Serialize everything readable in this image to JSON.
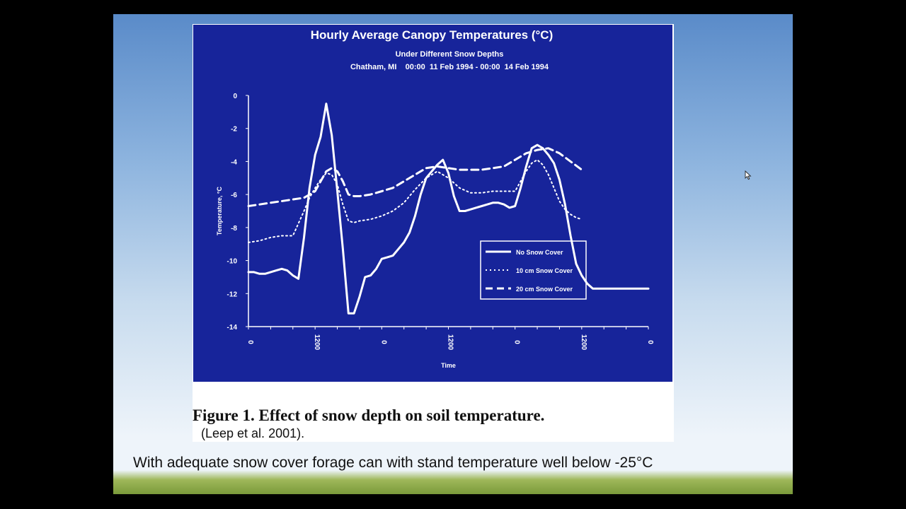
{
  "slide": {
    "caption": "Figure 1.  Effect of snow depth on soil temperature.",
    "citation": "(Leep et al. 2001).",
    "body_text": "With adequate snow cover forage can with stand temperature well below -25°C"
  },
  "chart_data": {
    "type": "line",
    "title": "Hourly Average Canopy Temperatures (°C)",
    "subtitle": "Under Different Snow Depths",
    "subtitle2": "Chatham, MI    00:00  11 Feb 1994 - 00:00  14 Feb 1994",
    "xlabel": "Time",
    "ylabel": "Temperature, °C",
    "ylim": [
      -14,
      0
    ],
    "xlim": [
      0,
      72
    ],
    "xtick_positions": [
      0,
      12,
      24,
      36,
      48,
      60,
      72
    ],
    "xtick_labels": [
      "0",
      "1200",
      "0",
      "1200",
      "0",
      "1200",
      "0"
    ],
    "yticks": [
      0,
      -2,
      -4,
      -6,
      -8,
      -10,
      -12,
      -14
    ],
    "legend_position": "center-right",
    "colors": {
      "background": "#17249a",
      "lines": "#ffffff"
    },
    "series": [
      {
        "name": "No Snow Cover",
        "style": "solid",
        "x": [
          0,
          1,
          2,
          3,
          4,
          5,
          6,
          7,
          8,
          9,
          10,
          11,
          12,
          13,
          14,
          15,
          16,
          17,
          18,
          19,
          20,
          21,
          22,
          23,
          24,
          25,
          26,
          27,
          28,
          29,
          30,
          31,
          32,
          33,
          34,
          35,
          36,
          37,
          38,
          39,
          40,
          41,
          42,
          43,
          44,
          45,
          46,
          47,
          48,
          49,
          50,
          51,
          52,
          53,
          54,
          55,
          56,
          57,
          58,
          59,
          60,
          61,
          62,
          63,
          64,
          65,
          66,
          67,
          68,
          69,
          70,
          71,
          72
        ],
        "values": [
          -10.7,
          -10.7,
          -10.8,
          -10.8,
          -10.7,
          -10.6,
          -10.5,
          -10.6,
          -10.9,
          -11.1,
          -8.6,
          -5.6,
          -3.6,
          -2.5,
          -0.5,
          -2.4,
          -5.8,
          -9.3,
          -13.2,
          -13.2,
          -12.2,
          -11.0,
          -10.9,
          -10.5,
          -9.9,
          -9.8,
          -9.7,
          -9.3,
          -8.9,
          -8.3,
          -7.3,
          -6.0,
          -5.0,
          -4.6,
          -4.2,
          -3.9,
          -4.7,
          -6.1,
          -7.0,
          -7.0,
          -6.9,
          -6.8,
          -6.7,
          -6.6,
          -6.5,
          -6.5,
          -6.6,
          -6.8,
          -6.7,
          -5.6,
          -4.3,
          -3.2,
          -3.0,
          -3.2,
          -3.6,
          -4.1,
          -5.1,
          -6.6,
          -8.5,
          -10.2,
          -10.9,
          -11.4,
          -11.7,
          -11.7,
          -11.7,
          -11.7,
          -11.7,
          -11.7,
          -11.7,
          -11.7,
          -11.7,
          -11.7,
          -11.7
        ]
      },
      {
        "name": "10 cm Snow Cover",
        "style": "dotted",
        "x": [
          0,
          2,
          4,
          6,
          8,
          10,
          11,
          12,
          13,
          14,
          15,
          16,
          17,
          18,
          19,
          20,
          22,
          24,
          26,
          28,
          30,
          32,
          34,
          36,
          38,
          40,
          42,
          44,
          46,
          48,
          49,
          50,
          51,
          52,
          53,
          54,
          55,
          56,
          57,
          58,
          59,
          60
        ],
        "values": [
          -8.9,
          -8.8,
          -8.6,
          -8.5,
          -8.5,
          -7.0,
          -6.2,
          -5.6,
          -5.1,
          -4.7,
          -4.8,
          -5.4,
          -6.6,
          -7.6,
          -7.7,
          -7.6,
          -7.5,
          -7.3,
          -7.0,
          -6.5,
          -5.7,
          -5.0,
          -4.6,
          -5.0,
          -5.6,
          -5.9,
          -5.9,
          -5.8,
          -5.8,
          -5.8,
          -5.2,
          -4.6,
          -4.1,
          -3.9,
          -4.2,
          -4.8,
          -5.6,
          -6.4,
          -6.9,
          -7.2,
          -7.4,
          -7.5
        ]
      },
      {
        "name": "20 cm Snow Cover",
        "style": "dashed",
        "x": [
          0,
          2,
          4,
          6,
          8,
          10,
          12,
          13,
          14,
          15,
          16,
          17,
          18,
          19,
          20,
          22,
          24,
          26,
          28,
          30,
          32,
          34,
          36,
          38,
          40,
          42,
          44,
          46,
          48,
          50,
          52,
          54,
          56,
          58,
          60
        ],
        "values": [
          -6.7,
          -6.6,
          -6.5,
          -6.4,
          -6.3,
          -6.2,
          -5.8,
          -5.2,
          -4.6,
          -4.4,
          -4.6,
          -5.2,
          -6.0,
          -6.1,
          -6.1,
          -6.0,
          -5.8,
          -5.6,
          -5.2,
          -4.8,
          -4.4,
          -4.3,
          -4.4,
          -4.5,
          -4.5,
          -4.5,
          -4.4,
          -4.3,
          -3.9,
          -3.5,
          -3.3,
          -3.2,
          -3.5,
          -4.0,
          -4.5
        ]
      }
    ]
  }
}
